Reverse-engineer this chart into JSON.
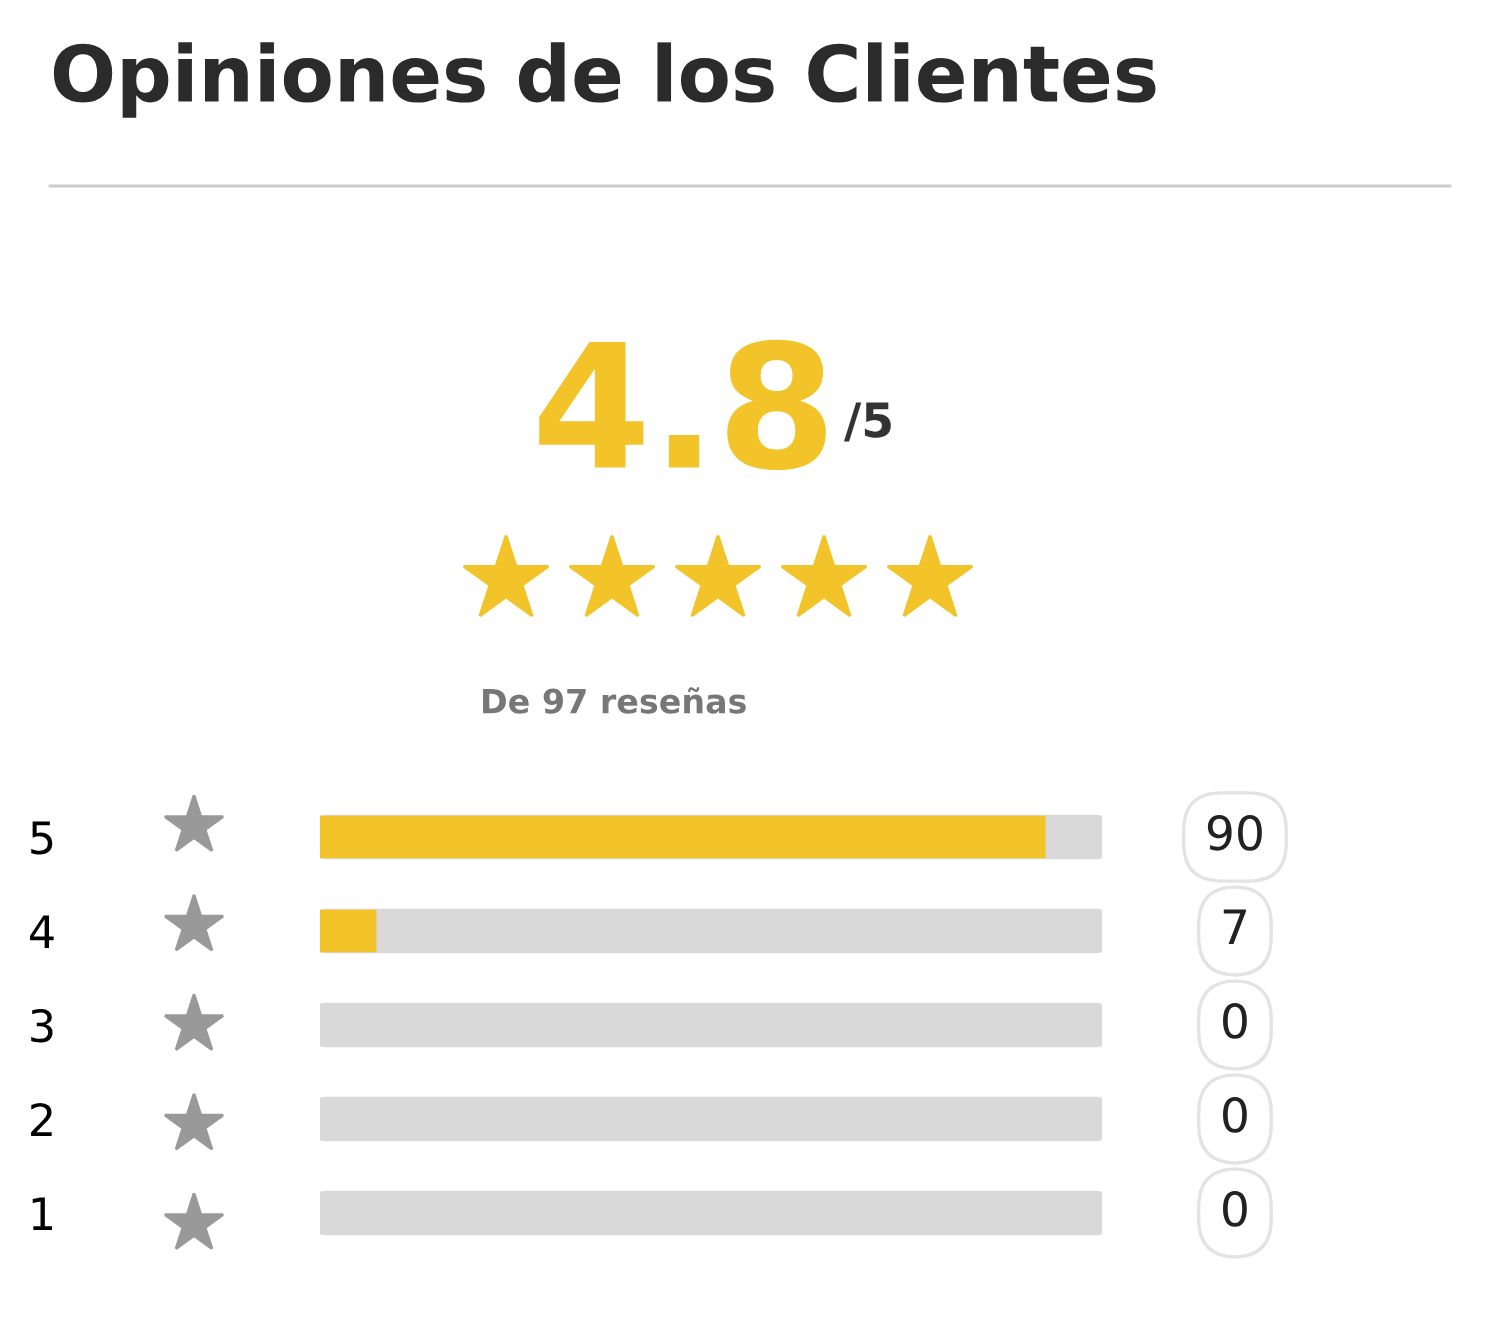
{
  "chart_data": {
    "type": "bar",
    "orientation": "horizontal",
    "title": "Opiniones de los Clientes",
    "annotations": [
      "4.8",
      "/5",
      "De 97 reseñas"
    ],
    "categories": [
      "5",
      "4",
      "3",
      "2",
      "1"
    ],
    "values": [
      90,
      7,
      0,
      0,
      0
    ],
    "color": "#f2c42a",
    "xlim": [
      0,
      97
    ],
    "tick_labels": "y",
    "data_labels": true,
    "grid": false,
    "legend": false
  }
}
